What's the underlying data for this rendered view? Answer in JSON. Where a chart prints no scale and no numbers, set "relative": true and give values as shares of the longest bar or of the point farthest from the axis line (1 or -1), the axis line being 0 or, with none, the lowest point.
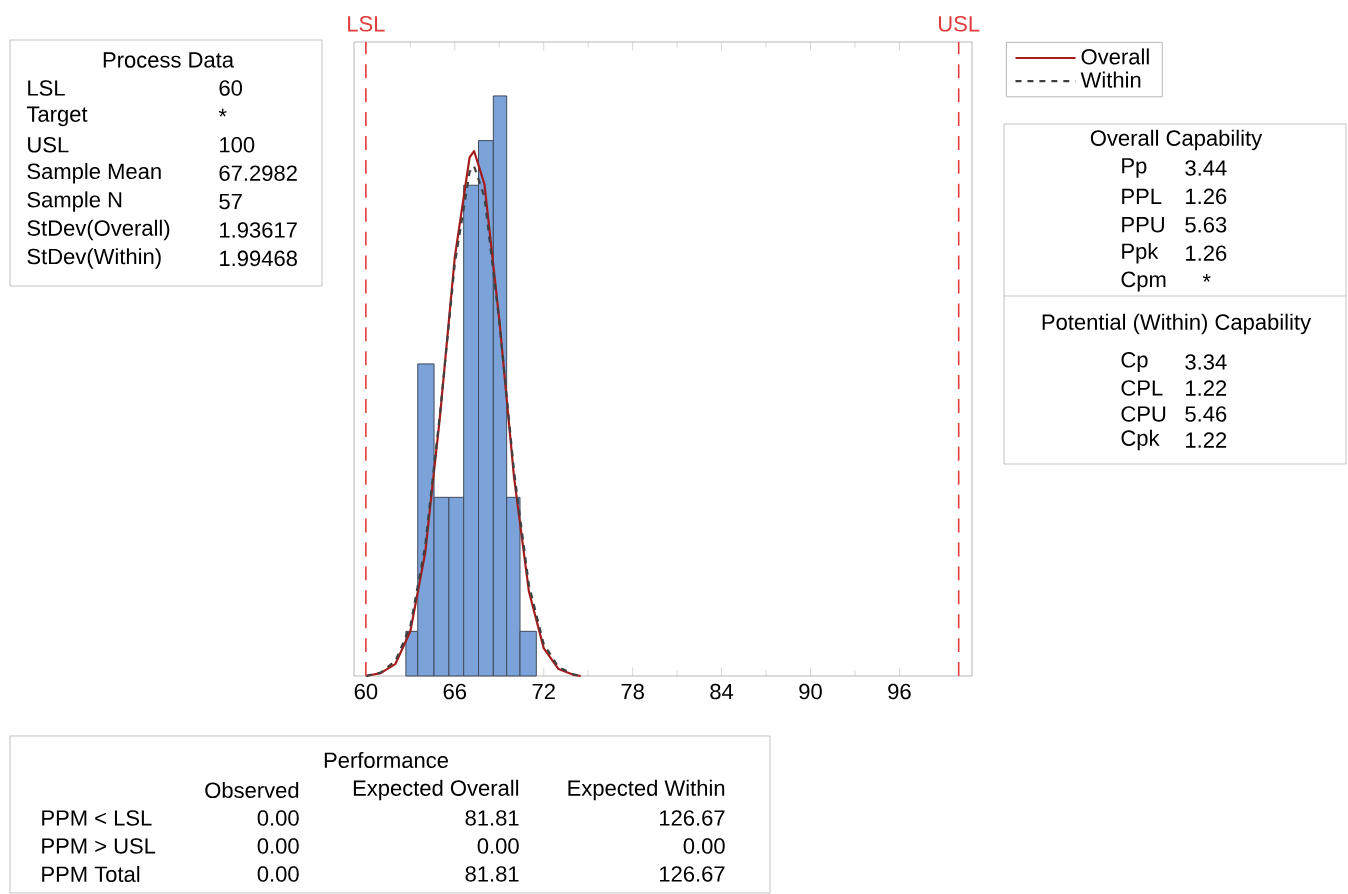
{
  "chart_data": {
    "type": "histogram",
    "relative": true,
    "xlim": [
      59.2,
      100.9
    ],
    "xticks": [
      60,
      66,
      72,
      78,
      84,
      90,
      96
    ],
    "tick_labels": "x",
    "legend": "top right",
    "series": [
      {
        "color": "#7ba3d9",
        "bins": [
          62.7,
          63.5,
          64.6,
          65.6,
          66.6,
          67.6,
          68.6,
          69.5,
          70.4,
          71.5
        ],
        "values": [
          0.077,
          0.538,
          0.308,
          0.308,
          0.846,
          0.923,
          1,
          0.308,
          0.077
        ]
      },
      {
        "type": "line",
        "name": "Overall",
        "color": "#a51c1c",
        "line_style": "solid",
        "x": [
          60,
          61,
          62,
          63,
          64,
          65,
          66,
          67,
          67.3,
          68,
          69,
          70,
          71,
          72,
          73,
          74,
          74.5
        ],
        "values": [
          0,
          0.005,
          0.021,
          0.077,
          0.212,
          0.447,
          0.722,
          0.894,
          0.905,
          0.848,
          0.615,
          0.342,
          0.146,
          0.048,
          0.012,
          0.002,
          0
        ]
      },
      {
        "type": "line",
        "name": "Within",
        "color": "#404040",
        "line_style": "dashed",
        "x": [
          60,
          61,
          62,
          63,
          64,
          65,
          66,
          67,
          67.3,
          68,
          69,
          70,
          71,
          72,
          73,
          74,
          74.5
        ],
        "values": [
          0,
          0.006,
          0.026,
          0.086,
          0.224,
          0.452,
          0.711,
          0.869,
          0.879,
          0.826,
          0.612,
          0.352,
          0.157,
          0.055,
          0.015,
          0.003,
          0
        ]
      }
    ],
    "ref_lines": [
      {
        "axis": "x",
        "value": 60,
        "label": "LSL",
        "color": "#e03c3c",
        "line_style": "dashed"
      },
      {
        "axis": "x",
        "value": 100,
        "label": "USL",
        "color": "#e03c3c",
        "line_style": "dashed"
      }
    ],
    "annotations": [
      "Process Data",
      "LSL",
      "60",
      "Target",
      "*",
      "USL",
      "100",
      "Sample Mean",
      "67.2982",
      "Sample N",
      "57",
      "StDev(Overall)",
      "1.93617",
      "StDev(Within)",
      "1.99468",
      "Overall Capability",
      "Pp",
      "3.44",
      "PPL",
      "1.26",
      "PPU",
      "5.63",
      "Ppk",
      "1.26",
      "Cpm",
      "*",
      "Potential (Within) Capability",
      "Cp",
      "3.34",
      "CPL",
      "1.22",
      "CPU",
      "5.46",
      "Cpk",
      "1.22",
      "Performance",
      "Observed",
      "Expected Overall",
      "Expected Within",
      "PPM < LSL",
      "0.00",
      "81.81",
      "126.67",
      "PPM > USL",
      "0.00",
      "0.00",
      "0.00",
      "PPM Total",
      "0.00",
      "81.81",
      "126.67"
    ]
  }
}
